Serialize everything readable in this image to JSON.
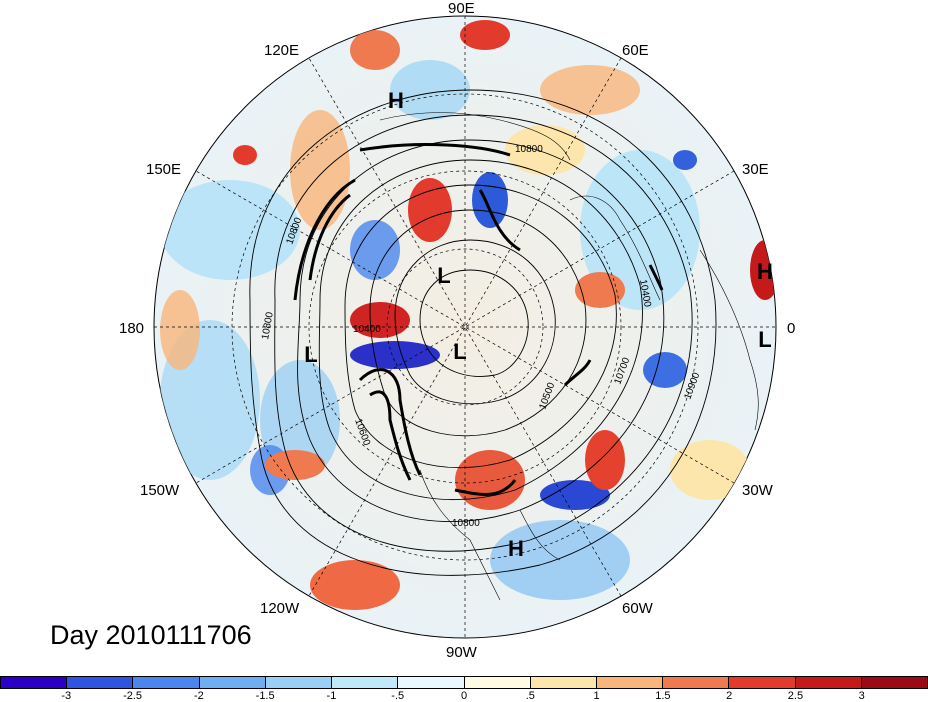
{
  "map": {
    "title": "Day 2010111706",
    "longitude_labels": [
      "90E",
      "60E",
      "30E",
      "0",
      "30W",
      "60W",
      "90W",
      "120W",
      "150W",
      "180",
      "150E",
      "120E"
    ],
    "pressure_centers": [
      {
        "label": "H",
        "region": "Siberia"
      },
      {
        "label": "H",
        "region": "Europe / Mediterranean"
      },
      {
        "label": "H",
        "region": "Caribbean / Gulf"
      },
      {
        "label": "L",
        "region": "Arctic / North Pole"
      },
      {
        "label": "L",
        "region": "North Atlantic"
      },
      {
        "label": "L",
        "region": "Bering Sea"
      },
      {
        "label": "L",
        "region": "Beaufort Sea"
      }
    ],
    "contour_labels": [
      "10800",
      "10800",
      "10800",
      "10400",
      "10600",
      "10500",
      "10700",
      "10900",
      "10400",
      "10800"
    ]
  },
  "colorbar": {
    "ticks": [
      "-3",
      "-2.5",
      "-2",
      "-1.5",
      "-1",
      "-.5",
      "0",
      ".5",
      "1",
      "1.5",
      "2",
      "2.5",
      "3"
    ],
    "colors": [
      "#2a00c8",
      "#2f55e0",
      "#4a86ee",
      "#6eaef3",
      "#98d0f8",
      "#bfe8fb",
      "#e8f8fd",
      "#fffbe2",
      "#fde6ac",
      "#f9b57a",
      "#f07a50",
      "#e33a2e",
      "#c41a1a",
      "#9b0a15"
    ]
  }
}
